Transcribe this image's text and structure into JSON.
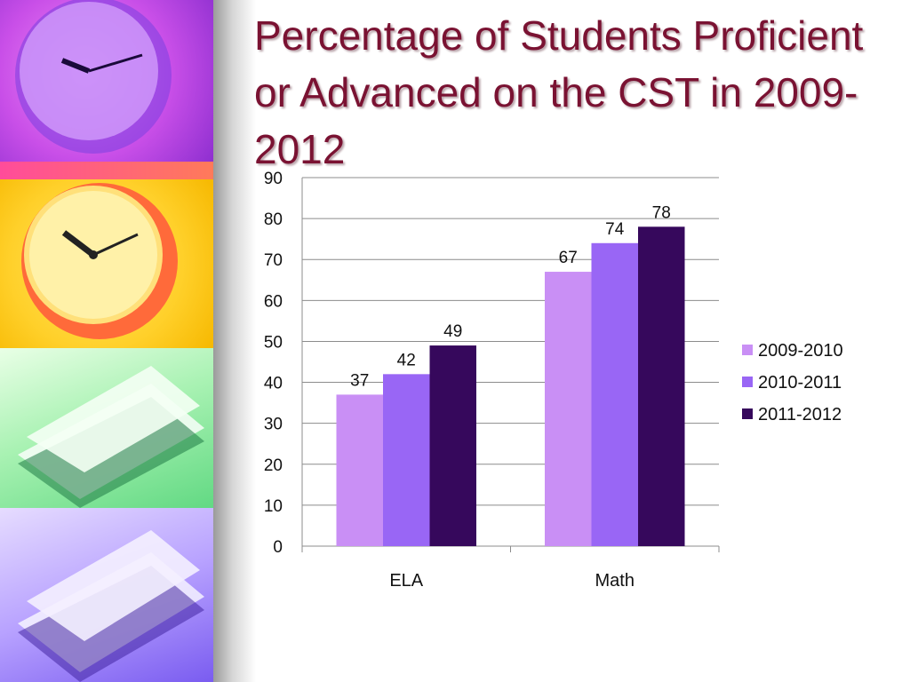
{
  "slide": {
    "title": "Percentage of Students Proficient or Advanced on the CST in 2009-2012"
  },
  "chart_data": {
    "type": "bar",
    "title": "",
    "xlabel": "",
    "ylabel": "",
    "categories": [
      "ELA",
      "Math"
    ],
    "series": [
      {
        "name": "2009-2010",
        "values": [
          37,
          67
        ],
        "color": "#c98ff5"
      },
      {
        "name": "2010-2011",
        "values": [
          42,
          74
        ],
        "color": "#9966f5"
      },
      {
        "name": "2011-2012",
        "values": [
          49,
          78
        ],
        "color": "#36085c"
      }
    ],
    "ylim": [
      0,
      90
    ],
    "yticks": [
      0,
      10,
      20,
      30,
      40,
      50,
      60,
      70,
      80,
      90
    ],
    "grid": true,
    "legend_position": "right"
  }
}
